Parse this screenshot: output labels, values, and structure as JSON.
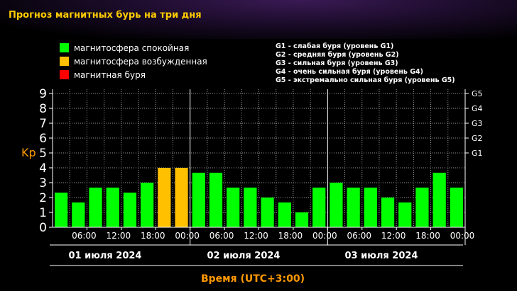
{
  "header": {
    "title": "Прогноз магнитных бурь на три дня"
  },
  "legend": {
    "items": [
      {
        "label": "магнитосфера спокойная",
        "color": "#00ff00"
      },
      {
        "label": "магнитосфера возбужденная",
        "color": "#ffc000"
      },
      {
        "label": "магнитная буря",
        "color": "#ff0000"
      }
    ],
    "g_scale": [
      "G1 - слабая буря (уровень G1)",
      "G2 - средняя буря (уровень G2)",
      "G3 - сильная буря (уровень G3)",
      "G4 - очень сильная буря (уровень G4)",
      "G5 - экстремально сильная буря (уровень G5)"
    ]
  },
  "colors": {
    "quiet": "#00ff00",
    "active": "#ffc000",
    "storm": "#ff0000",
    "accent": "#ff9900"
  },
  "chart_data": {
    "type": "bar",
    "ylabel": "Kp",
    "xlabel": "Время (UTC+3:00)",
    "ylim": [
      0,
      9
    ],
    "yticks": [
      0,
      1,
      2,
      3,
      4,
      5,
      6,
      7,
      8,
      9
    ],
    "right_axis_labels": [
      {
        "value": 5,
        "label": "G1"
      },
      {
        "value": 6,
        "label": "G2"
      },
      {
        "value": 7,
        "label": "G3"
      },
      {
        "value": 8,
        "label": "G4"
      },
      {
        "value": 9,
        "label": "G5"
      }
    ],
    "days": [
      "01 июля 2024",
      "02 июля 2024",
      "03 июля 2024"
    ],
    "time_ticks": [
      "06:00",
      "12:00",
      "18:00",
      "00:00",
      "06:00",
      "12:00",
      "18:00",
      "00:00",
      "06:00",
      "12:00",
      "18:00",
      "00:00"
    ],
    "values": [
      2.33,
      1.67,
      2.67,
      2.67,
      2.33,
      3.0,
      4.0,
      4.0,
      3.67,
      3.67,
      2.67,
      2.67,
      2.0,
      1.67,
      1.0,
      2.67,
      3.0,
      2.67,
      2.67,
      2.0,
      1.67,
      2.67,
      3.67,
      2.67
    ],
    "status": [
      "quiet",
      "quiet",
      "quiet",
      "quiet",
      "quiet",
      "quiet",
      "active",
      "active",
      "quiet",
      "quiet",
      "quiet",
      "quiet",
      "quiet",
      "quiet",
      "quiet",
      "quiet",
      "quiet",
      "quiet",
      "quiet",
      "quiet",
      "quiet",
      "quiet",
      "quiet",
      "quiet"
    ],
    "grid": true
  }
}
